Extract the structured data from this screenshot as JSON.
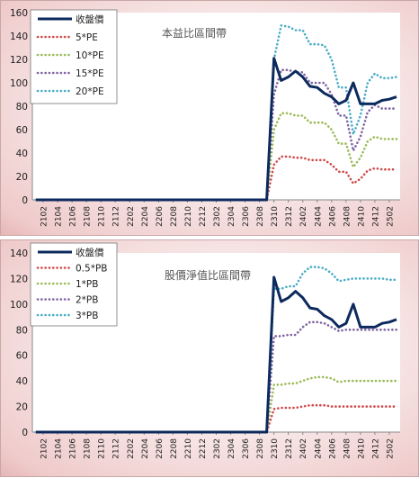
{
  "chart_data": [
    {
      "type": "line",
      "title": "本益比區間帶",
      "ylim": [
        0,
        160
      ],
      "yticks": [
        0,
        20,
        40,
        60,
        80,
        100,
        120,
        140,
        160
      ],
      "x": [
        "2101",
        "2102",
        "2103",
        "2104",
        "2105",
        "2106",
        "2107",
        "2108",
        "2109",
        "2110",
        "2111",
        "2112",
        "2201",
        "2202",
        "2203",
        "2204",
        "2205",
        "2206",
        "2207",
        "2208",
        "2209",
        "2210",
        "2211",
        "2212",
        "2301",
        "2302",
        "2303",
        "2304",
        "2305",
        "2306",
        "2307",
        "2308",
        "2309",
        "2310",
        "2311",
        "2312",
        "2401",
        "2402",
        "2403",
        "2404",
        "2405",
        "2406",
        "2407",
        "2408",
        "2409",
        "2410",
        "2411",
        "2412",
        "2501",
        "2502",
        "2503"
      ],
      "xtick_labels": [
        "2102",
        "2104",
        "2106",
        "2108",
        "2110",
        "2112",
        "2202",
        "2204",
        "2206",
        "2208",
        "2210",
        "2212",
        "2302",
        "2304",
        "2306",
        "2308",
        "2310",
        "2312",
        "2402",
        "2404",
        "2406",
        "2408",
        "2410",
        "2412",
        "2502"
      ],
      "legend": "top-left",
      "series": [
        {
          "name": "收盤價",
          "color": "#0d2a5e",
          "style": "solid",
          "values": [
            0,
            0,
            0,
            0,
            0,
            0,
            0,
            0,
            0,
            0,
            0,
            0,
            0,
            0,
            0,
            0,
            0,
            0,
            0,
            0,
            0,
            0,
            0,
            0,
            0,
            0,
            0,
            0,
            0,
            0,
            0,
            0,
            0,
            121,
            102,
            105,
            110,
            105,
            97,
            96,
            91,
            88,
            82,
            85,
            100,
            82,
            82,
            82,
            85,
            86,
            88
          ]
        },
        {
          "name": "5*PE",
          "color": "#d04a4a",
          "style": "dotted",
          "values": [
            0,
            0,
            0,
            0,
            0,
            0,
            0,
            0,
            0,
            0,
            0,
            0,
            0,
            0,
            0,
            0,
            0,
            0,
            0,
            0,
            0,
            0,
            0,
            0,
            0,
            0,
            0,
            0,
            0,
            0,
            0,
            0,
            0,
            30,
            37,
            37,
            36,
            36,
            34,
            34,
            34,
            30,
            24,
            24,
            14,
            18,
            25,
            27,
            26,
            26,
            26
          ]
        },
        {
          "name": "10*PE",
          "color": "#9bbb59",
          "style": "dotted",
          "values": [
            0,
            0,
            0,
            0,
            0,
            0,
            0,
            0,
            0,
            0,
            0,
            0,
            0,
            0,
            0,
            0,
            0,
            0,
            0,
            0,
            0,
            0,
            0,
            0,
            0,
            0,
            0,
            0,
            0,
            0,
            0,
            0,
            0,
            60,
            74,
            74,
            72,
            72,
            66,
            66,
            66,
            60,
            48,
            48,
            28,
            36,
            50,
            54,
            52,
            52,
            52
          ]
        },
        {
          "name": "15*PE",
          "color": "#8064a2",
          "style": "dotted",
          "values": [
            0,
            0,
            0,
            0,
            0,
            0,
            0,
            0,
            0,
            0,
            0,
            0,
            0,
            0,
            0,
            0,
            0,
            0,
            0,
            0,
            0,
            0,
            0,
            0,
            0,
            0,
            0,
            0,
            0,
            0,
            0,
            0,
            0,
            90,
            111,
            111,
            109,
            109,
            100,
            100,
            100,
            90,
            72,
            72,
            42,
            54,
            75,
            81,
            78,
            78,
            78
          ]
        },
        {
          "name": "20*PE",
          "color": "#4bacc6",
          "style": "dotted",
          "values": [
            0,
            0,
            0,
            0,
            0,
            0,
            0,
            0,
            0,
            0,
            0,
            0,
            0,
            0,
            0,
            0,
            0,
            0,
            0,
            0,
            0,
            0,
            0,
            0,
            0,
            0,
            0,
            0,
            0,
            0,
            0,
            0,
            0,
            120,
            149,
            148,
            145,
            145,
            133,
            133,
            132,
            120,
            96,
            96,
            56,
            72,
            100,
            108,
            104,
            104,
            105
          ]
        }
      ]
    },
    {
      "type": "line",
      "title": "股價淨值比區間帶",
      "ylim": [
        0,
        140
      ],
      "yticks": [
        0,
        20,
        40,
        60,
        80,
        100,
        120,
        140
      ],
      "x": [
        "2101",
        "2102",
        "2103",
        "2104",
        "2105",
        "2106",
        "2107",
        "2108",
        "2109",
        "2110",
        "2111",
        "2112",
        "2201",
        "2202",
        "2203",
        "2204",
        "2205",
        "2206",
        "2207",
        "2208",
        "2209",
        "2210",
        "2211",
        "2212",
        "2301",
        "2302",
        "2303",
        "2304",
        "2305",
        "2306",
        "2307",
        "2308",
        "2309",
        "2310",
        "2311",
        "2312",
        "2401",
        "2402",
        "2403",
        "2404",
        "2405",
        "2406",
        "2407",
        "2408",
        "2409",
        "2410",
        "2411",
        "2412",
        "2501",
        "2502",
        "2503"
      ],
      "xtick_labels": [
        "2102",
        "2104",
        "2106",
        "2108",
        "2110",
        "2112",
        "2202",
        "2204",
        "2206",
        "2208",
        "2210",
        "2212",
        "2302",
        "2304",
        "2306",
        "2308",
        "2310",
        "2312",
        "2402",
        "2404",
        "2406",
        "2408",
        "2410",
        "2412",
        "2502"
      ],
      "legend": "top-left",
      "series": [
        {
          "name": "收盤價",
          "color": "#0d2a5e",
          "style": "solid",
          "values": [
            0,
            0,
            0,
            0,
            0,
            0,
            0,
            0,
            0,
            0,
            0,
            0,
            0,
            0,
            0,
            0,
            0,
            0,
            0,
            0,
            0,
            0,
            0,
            0,
            0,
            0,
            0,
            0,
            0,
            0,
            0,
            0,
            0,
            121,
            102,
            105,
            110,
            105,
            97,
            96,
            91,
            88,
            82,
            85,
            100,
            82,
            82,
            82,
            85,
            86,
            88
          ]
        },
        {
          "name": "0.5*PB",
          "color": "#d04a4a",
          "style": "dotted",
          "values": [
            0,
            0,
            0,
            0,
            0,
            0,
            0,
            0,
            0,
            0,
            0,
            0,
            0,
            0,
            0,
            0,
            0,
            0,
            0,
            0,
            0,
            0,
            0,
            0,
            0,
            0,
            0,
            0,
            0,
            0,
            0,
            0,
            0,
            18,
            19,
            19,
            19,
            20,
            21,
            21,
            21,
            20,
            20,
            20,
            20,
            20,
            20,
            20,
            20,
            20,
            20
          ]
        },
        {
          "name": "1*PB",
          "color": "#9bbb59",
          "style": "dotted",
          "values": [
            0,
            0,
            0,
            0,
            0,
            0,
            0,
            0,
            0,
            0,
            0,
            0,
            0,
            0,
            0,
            0,
            0,
            0,
            0,
            0,
            0,
            0,
            0,
            0,
            0,
            0,
            0,
            0,
            0,
            0,
            0,
            0,
            0,
            37,
            37,
            38,
            38,
            40,
            42,
            43,
            43,
            42,
            39,
            40,
            40,
            40,
            40,
            40,
            40,
            40,
            40
          ]
        },
        {
          "name": "2*PB",
          "color": "#8064a2",
          "style": "dotted",
          "values": [
            0,
            0,
            0,
            0,
            0,
            0,
            0,
            0,
            0,
            0,
            0,
            0,
            0,
            0,
            0,
            0,
            0,
            0,
            0,
            0,
            0,
            0,
            0,
            0,
            0,
            0,
            0,
            0,
            0,
            0,
            0,
            0,
            0,
            75,
            75,
            76,
            76,
            82,
            86,
            86,
            85,
            82,
            79,
            80,
            80,
            80,
            80,
            80,
            80,
            80,
            80
          ]
        },
        {
          "name": "3*PB",
          "color": "#4bacc6",
          "style": "dotted",
          "values": [
            0,
            0,
            0,
            0,
            0,
            0,
            0,
            0,
            0,
            0,
            0,
            0,
            0,
            0,
            0,
            0,
            0,
            0,
            0,
            0,
            0,
            0,
            0,
            0,
            0,
            0,
            0,
            0,
            0,
            0,
            0,
            0,
            0,
            112,
            112,
            114,
            114,
            124,
            129,
            129,
            128,
            124,
            118,
            119,
            120,
            120,
            120,
            120,
            120,
            119,
            119
          ]
        }
      ]
    }
  ]
}
